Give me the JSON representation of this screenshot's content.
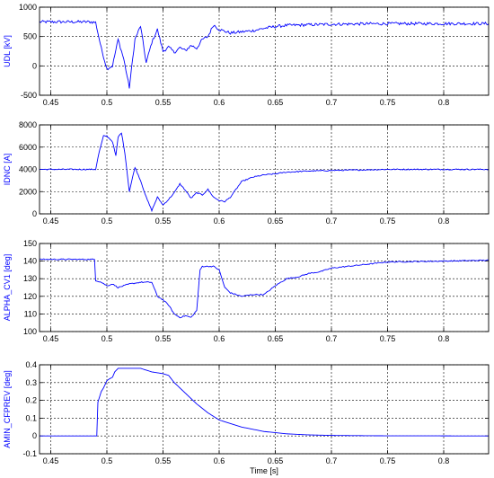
{
  "figure": {
    "background": "#ffffff",
    "axes_color": "#000000",
    "grid_color": "#000000",
    "line_color": "#0000ff"
  },
  "chart_data": [
    {
      "type": "line",
      "ylabel": "UDL [kV]",
      "xlim": [
        0.44,
        0.84
      ],
      "ylim": [
        -500,
        1000
      ],
      "xticks": [
        "0.45",
        "0.5",
        "0.55",
        "0.6",
        "0.65",
        "0.7",
        "0.75",
        "0.8"
      ],
      "yticks": [
        "-500",
        "0",
        "500",
        "1000"
      ],
      "grid": true,
      "series": [
        {
          "color": "#0000ff",
          "noise": 25,
          "x": [
            0.44,
            0.485,
            0.49,
            0.495,
            0.5,
            0.505,
            0.51,
            0.515,
            0.52,
            0.525,
            0.53,
            0.535,
            0.54,
            0.545,
            0.55,
            0.555,
            0.56,
            0.565,
            0.57,
            0.575,
            0.58,
            0.585,
            0.59,
            0.595,
            0.6,
            0.61,
            0.62,
            0.63,
            0.64,
            0.65,
            0.66,
            0.7,
            0.75,
            0.8,
            0.84
          ],
          "y": [
            750,
            750,
            740,
            300,
            -50,
            0,
            450,
            120,
            -370,
            450,
            680,
            50,
            400,
            620,
            250,
            320,
            230,
            310,
            260,
            350,
            300,
            450,
            500,
            700,
            620,
            560,
            580,
            600,
            640,
            670,
            690,
            710,
            720,
            720,
            720
          ]
        }
      ]
    },
    {
      "type": "line",
      "ylabel": "IDNC [A]",
      "xlim": [
        0.44,
        0.84
      ],
      "ylim": [
        0,
        8000
      ],
      "xticks": [
        "0.45",
        "0.5",
        "0.55",
        "0.6",
        "0.65",
        "0.7",
        "0.75",
        "0.8"
      ],
      "yticks": [
        "0",
        "2000",
        "4000",
        "6000",
        "8000"
      ],
      "grid": true,
      "series": [
        {
          "color": "#0000ff",
          "noise": 50,
          "x": [
            0.44,
            0.49,
            0.493,
            0.497,
            0.5,
            0.505,
            0.508,
            0.51,
            0.513,
            0.516,
            0.52,
            0.525,
            0.53,
            0.535,
            0.54,
            0.545,
            0.55,
            0.555,
            0.56,
            0.565,
            0.57,
            0.575,
            0.58,
            0.585,
            0.59,
            0.595,
            0.6,
            0.605,
            0.61,
            0.62,
            0.63,
            0.64,
            0.65,
            0.66,
            0.68,
            0.7,
            0.75,
            0.8,
            0.84
          ],
          "y": [
            4000,
            4000,
            5500,
            7000,
            7000,
            6500,
            5200,
            6900,
            7300,
            5500,
            2000,
            4200,
            3000,
            1500,
            300,
            1500,
            800,
            1300,
            1900,
            2700,
            2100,
            1400,
            1900,
            1700,
            2200,
            1500,
            1200,
            1100,
            1500,
            2900,
            3300,
            3500,
            3600,
            3750,
            3850,
            3900,
            4000,
            4000,
            4000
          ]
        }
      ]
    },
    {
      "type": "line",
      "ylabel": "ALPHA_CV1 [deg]",
      "xlim": [
        0.44,
        0.84
      ],
      "ylim": [
        100,
        150
      ],
      "xticks": [
        "0.45",
        "0.5",
        "0.55",
        "0.6",
        "0.65",
        "0.7",
        "0.75",
        "0.8"
      ],
      "yticks": [
        "100",
        "110",
        "120",
        "130",
        "140",
        "150"
      ],
      "grid": true,
      "series": [
        {
          "color": "#0000ff",
          "noise": 0.3,
          "x": [
            0.44,
            0.489,
            0.49,
            0.495,
            0.5,
            0.505,
            0.51,
            0.515,
            0.52,
            0.53,
            0.54,
            0.545,
            0.55,
            0.555,
            0.56,
            0.565,
            0.57,
            0.575,
            0.58,
            0.583,
            0.585,
            0.59,
            0.595,
            0.6,
            0.605,
            0.61,
            0.62,
            0.63,
            0.64,
            0.65,
            0.66,
            0.67,
            0.68,
            0.69,
            0.7,
            0.75,
            0.8,
            0.84
          ],
          "y": [
            141,
            141,
            129,
            128,
            126,
            127,
            125,
            126,
            127,
            128,
            128,
            120,
            118,
            115,
            110,
            108,
            109,
            108,
            112,
            135,
            137,
            137,
            137,
            135,
            125,
            122,
            120,
            121,
            121,
            126,
            130,
            131,
            133,
            134,
            136,
            139.5,
            140,
            140.5
          ]
        }
      ]
    },
    {
      "type": "line",
      "ylabel": "AMIN_CFPREV [deg]",
      "xlabel": "Time [s]",
      "xlim": [
        0.44,
        0.84
      ],
      "ylim": [
        -0.1,
        0.4
      ],
      "xticks": [
        "0.45",
        "0.5",
        "0.55",
        "0.6",
        "0.65",
        "0.7",
        "0.75",
        "0.8"
      ],
      "yticks": [
        "-0.1",
        "0",
        "0.1",
        "0.2",
        "0.3",
        "0.4"
      ],
      "grid": true,
      "series": [
        {
          "color": "#0000ff",
          "noise": 0,
          "x": [
            0.44,
            0.491,
            0.492,
            0.495,
            0.497,
            0.5,
            0.502,
            0.505,
            0.507,
            0.51,
            0.52,
            0.53,
            0.54,
            0.55,
            0.555,
            0.56,
            0.57,
            0.58,
            0.59,
            0.6,
            0.62,
            0.64,
            0.66,
            0.68,
            0.7,
            0.74,
            0.84
          ],
          "y": [
            0,
            0,
            0.19,
            0.25,
            0.27,
            0.31,
            0.32,
            0.33,
            0.36,
            0.38,
            0.38,
            0.38,
            0.36,
            0.35,
            0.34,
            0.3,
            0.24,
            0.18,
            0.13,
            0.09,
            0.05,
            0.025,
            0.012,
            0.006,
            0.003,
            0.001,
            0
          ]
        }
      ]
    }
  ]
}
